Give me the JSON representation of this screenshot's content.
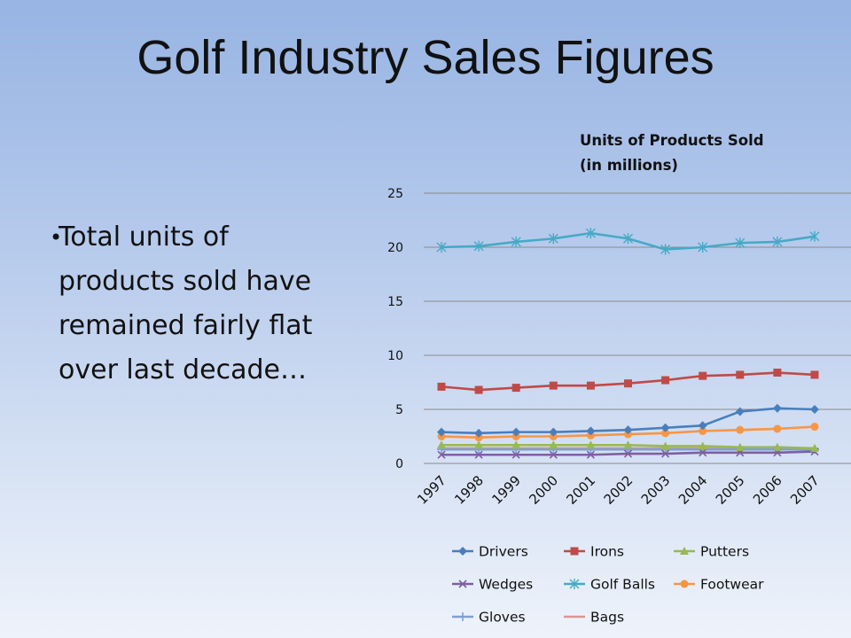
{
  "slide": {
    "title": "Golf Industry Sales Figures",
    "bullet": "Total units of products sold  have remained fairly flat over last decade…",
    "bullet_lines": [
      "Total units of",
      "products sold  have",
      "remained fairly flat",
      "over last decade…"
    ]
  },
  "chart_data": {
    "type": "line",
    "title_lines": [
      "Units of Products Sold",
      "(in millions)"
    ],
    "categories": [
      "1997",
      "1998",
      "1999",
      "2000",
      "2001",
      "2002",
      "2003",
      "2004",
      "2005",
      "2006",
      "2007"
    ],
    "ylim": [
      0,
      25
    ],
    "yticks": [
      0,
      5,
      10,
      15,
      20,
      25
    ],
    "grid": true,
    "legend_position": "bottom",
    "series": [
      {
        "name": "Drivers",
        "color": "#4a7ebb",
        "marker": "diamond",
        "values": [
          2.9,
          2.8,
          2.9,
          2.9,
          3.0,
          3.1,
          3.3,
          3.5,
          4.8,
          5.1,
          5.0
        ]
      },
      {
        "name": "Irons",
        "color": "#be4b48",
        "marker": "square",
        "values": [
          7.1,
          6.8,
          7.0,
          7.2,
          7.2,
          7.4,
          7.7,
          8.1,
          8.2,
          8.4,
          8.2
        ]
      },
      {
        "name": "Putters",
        "color": "#98b954",
        "marker": "triangle",
        "values": [
          1.7,
          1.7,
          1.7,
          1.7,
          1.7,
          1.7,
          1.6,
          1.6,
          1.5,
          1.5,
          1.4
        ]
      },
      {
        "name": "Wedges",
        "color": "#7d60a0",
        "marker": "x",
        "values": [
          0.8,
          0.8,
          0.8,
          0.8,
          0.8,
          0.9,
          0.9,
          1.0,
          1.0,
          1.0,
          1.1
        ]
      },
      {
        "name": "Golf Balls",
        "color": "#46aac5",
        "marker": "star",
        "values": [
          20.0,
          20.1,
          20.5,
          20.8,
          21.3,
          20.8,
          19.8,
          20.0,
          20.4,
          20.5,
          21.0
        ]
      },
      {
        "name": "Footwear",
        "color": "#f79646",
        "marker": "circle",
        "values": [
          2.5,
          2.4,
          2.5,
          2.5,
          2.6,
          2.7,
          2.8,
          3.0,
          3.1,
          3.2,
          3.4
        ]
      },
      {
        "name": "Gloves",
        "color": "#7f9fd4",
        "marker": "plus",
        "values": [
          1.3,
          1.3,
          1.3,
          1.3,
          1.3,
          1.3,
          1.3,
          1.3,
          1.3,
          1.3,
          1.3
        ]
      },
      {
        "name": "Bags",
        "color": "#d99795",
        "marker": "none",
        "values": [
          1.4,
          1.4,
          1.4,
          1.4,
          1.4,
          1.4,
          1.4,
          1.4,
          1.4,
          1.4,
          1.4
        ]
      }
    ]
  }
}
